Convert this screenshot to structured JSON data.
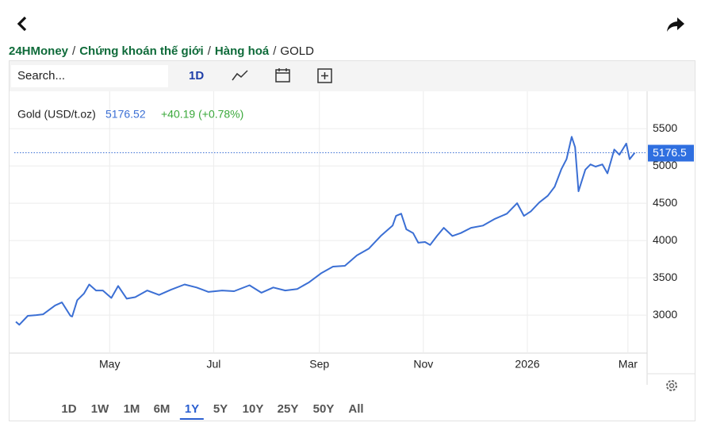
{
  "breadcrumb": {
    "items": [
      "24HMoney",
      "Chứng khoán thế giới",
      "Hàng hoá"
    ],
    "current": "GOLD",
    "separator": "/"
  },
  "toolbar": {
    "search_placeholder": "Search...",
    "interval": "1D"
  },
  "chart_data": {
    "type": "line",
    "series": [
      {
        "name": "Gold (USD/t.oz)",
        "color": "#3b6fd4",
        "values": [
          2910,
          2870,
          2990,
          3000,
          3010,
          3130,
          3170,
          2990,
          2980,
          3200,
          3290,
          3410,
          3330,
          3330,
          3230,
          3390,
          3220,
          3240,
          3330,
          3270,
          3340,
          3410,
          3370,
          3310,
          3330,
          3320,
          3400,
          3300,
          3370,
          3330,
          3350,
          3440,
          3560,
          3650,
          3660,
          3800,
          3890,
          4060,
          4200,
          4330,
          4360,
          4150,
          4100,
          3970,
          3980,
          3940,
          4060,
          4170,
          4060,
          4100,
          4170,
          4200,
          4290,
          4360,
          4500,
          4330,
          4390,
          4510,
          4600,
          4720,
          4960,
          5090,
          5390,
          5250,
          4660,
          4950,
          5020,
          4990,
          5020,
          4900,
          5220,
          5150,
          5300,
          5090,
          5176.52
        ]
      }
    ],
    "x": [
      0,
      2,
      7,
      12,
      16,
      23,
      27,
      32,
      33,
      36,
      40,
      43,
      47,
      51,
      56,
      60,
      65,
      70,
      77,
      84,
      91,
      99,
      106,
      113,
      121,
      128,
      137,
      144,
      151,
      158,
      165,
      172,
      179,
      186,
      193,
      200,
      207,
      214,
      221,
      223,
      226,
      229,
      233,
      236,
      240,
      243,
      247,
      251,
      256,
      261,
      267,
      274,
      281,
      288,
      294,
      298,
      302,
      307,
      312,
      316,
      320,
      323,
      326,
      328,
      330,
      334,
      337,
      340,
      344,
      347,
      351,
      354,
      358,
      360,
      363
    ],
    "xlim": [
      0,
      370
    ],
    "xticks": [
      {
        "value": 55,
        "label": "May"
      },
      {
        "value": 116,
        "label": "Jul"
      },
      {
        "value": 178,
        "label": "Sep"
      },
      {
        "value": 239,
        "label": "Nov"
      },
      {
        "value": 300,
        "label": "2026"
      },
      {
        "value": 359,
        "label": "Mar"
      }
    ],
    "ylim": [
      2490,
      5980
    ],
    "yticks": [
      3000,
      3500,
      4000,
      4500,
      5000,
      5500
    ],
    "grid": true,
    "last_value": 5176.52,
    "change": "+40.19 (+0.78%)",
    "price_line": {
      "value": 5176.52,
      "label": "5176.5"
    }
  },
  "ranges": {
    "items": [
      "1D",
      "1W",
      "1M",
      "6M",
      "1Y",
      "5Y",
      "10Y",
      "25Y",
      "50Y",
      "All"
    ],
    "selected": 4
  }
}
